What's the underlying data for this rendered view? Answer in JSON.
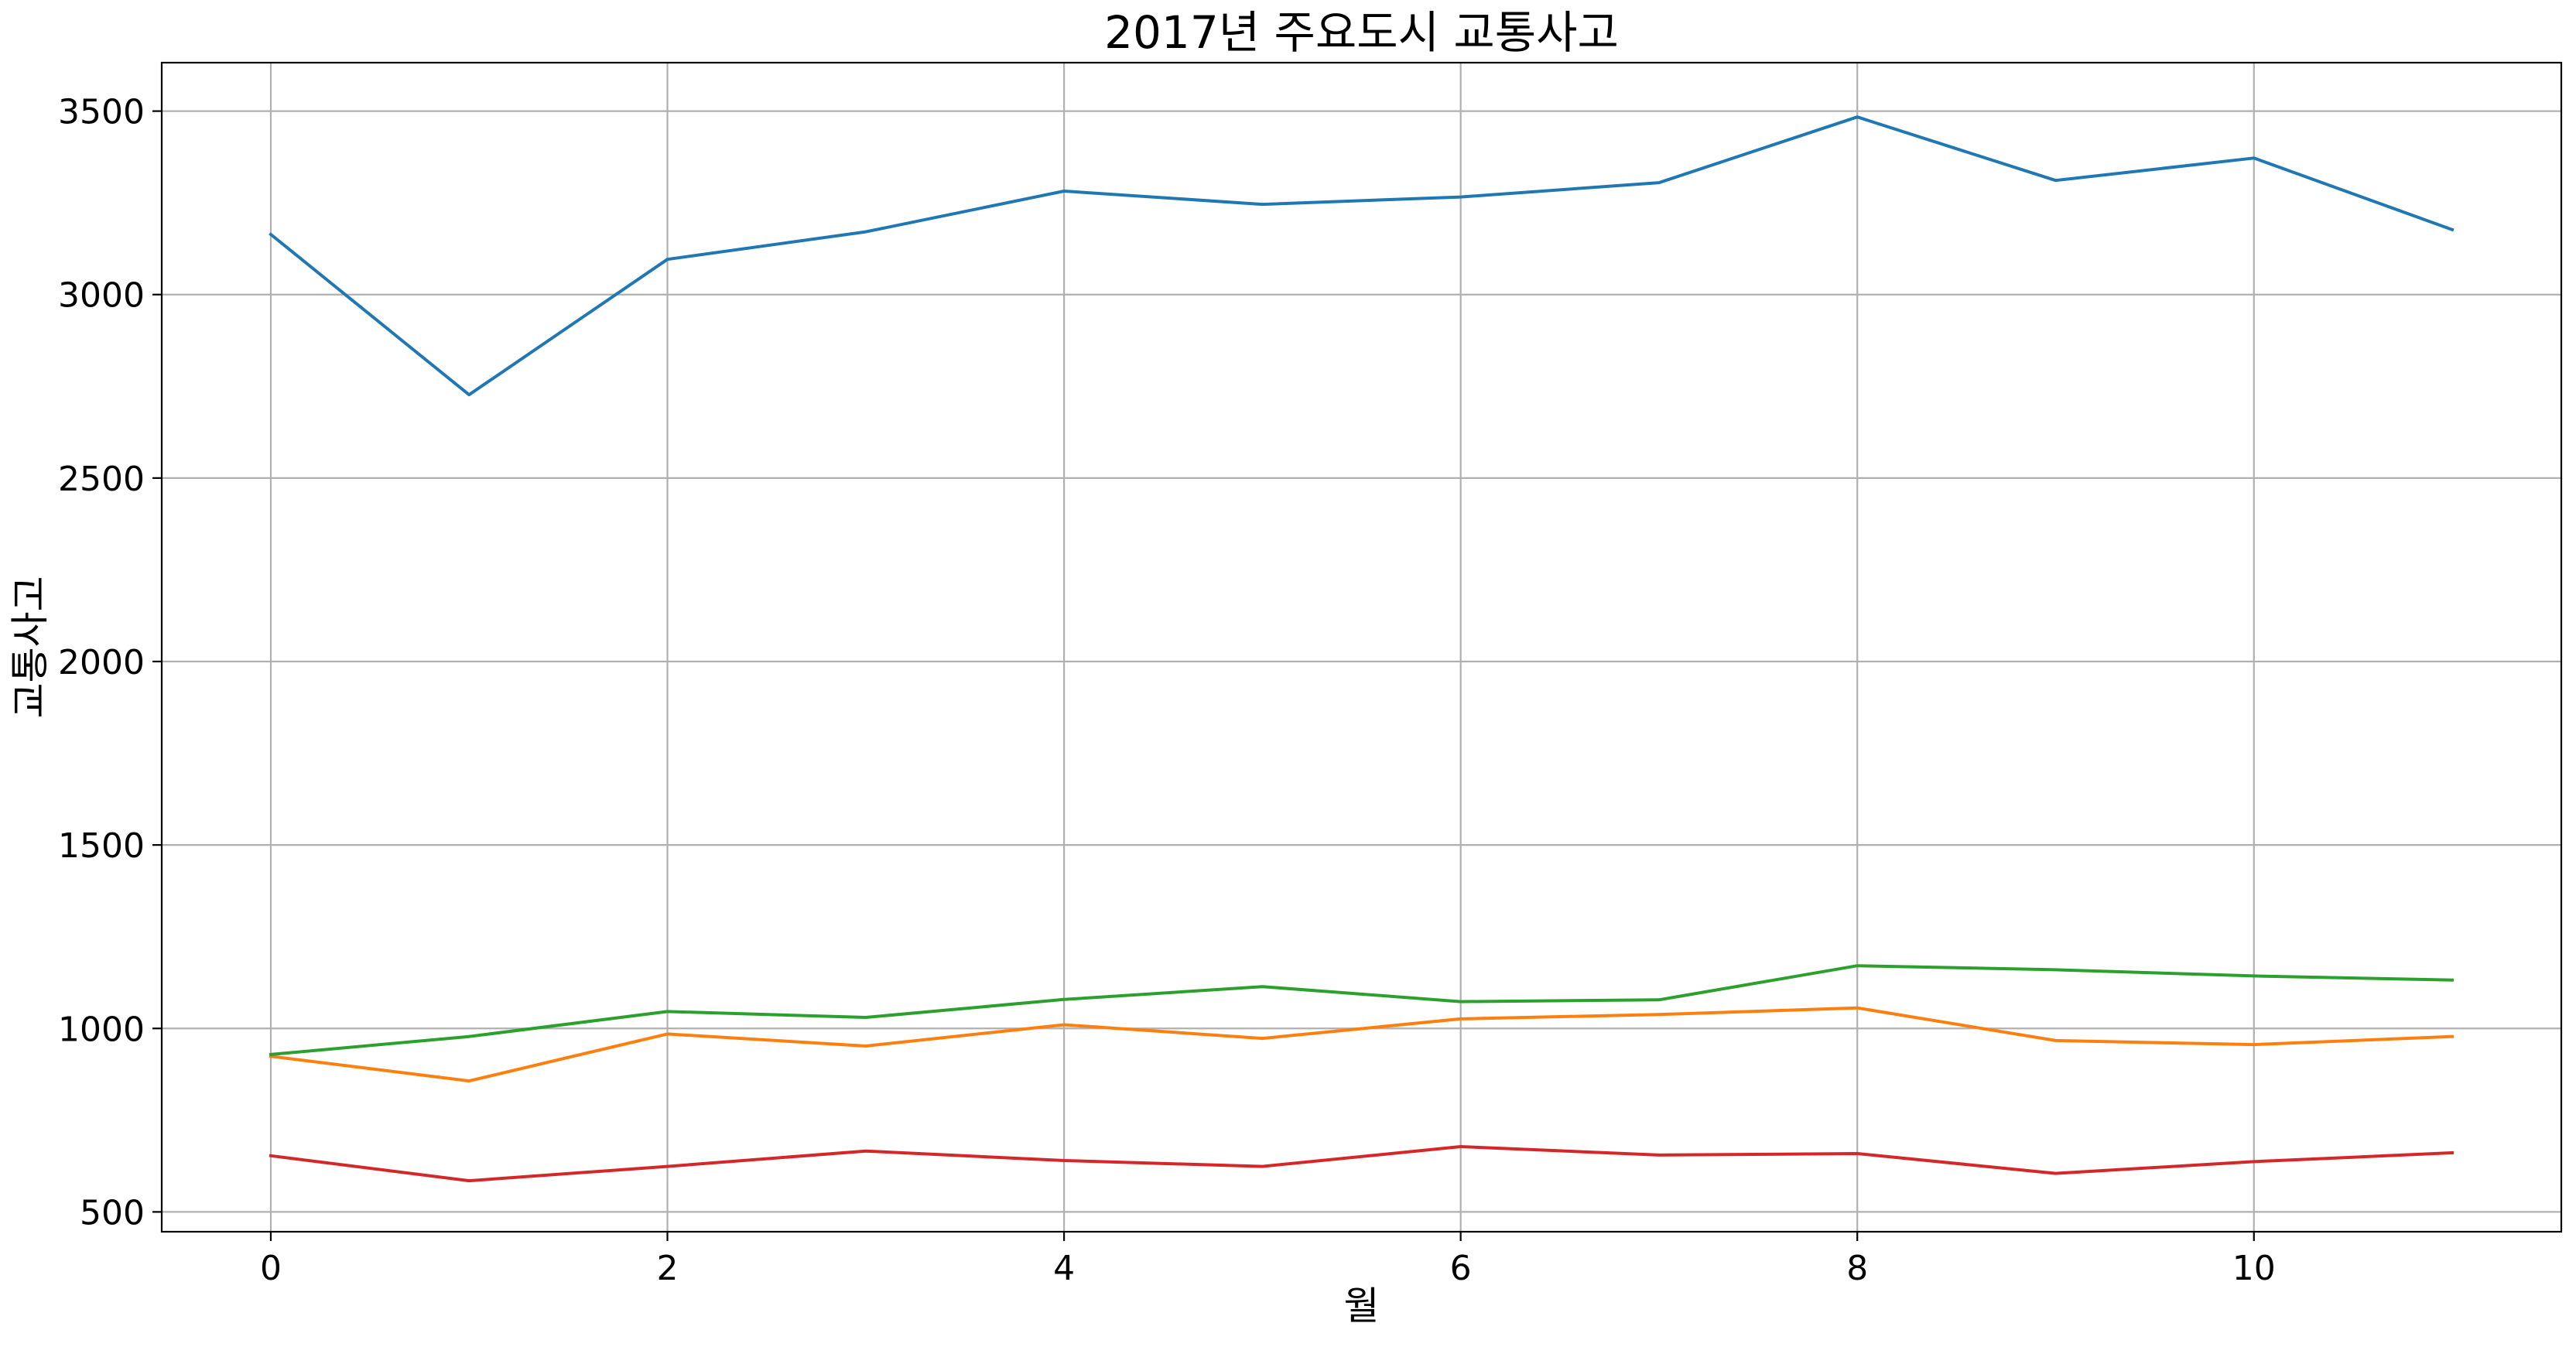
{
  "chart_data": {
    "type": "line",
    "title": "2017년 주요도시 교통사고",
    "xlabel": "월",
    "ylabel": "교통사고",
    "x": [
      0,
      1,
      2,
      3,
      4,
      5,
      6,
      7,
      8,
      9,
      10,
      11
    ],
    "xlim": [
      -0.55,
      11.55
    ],
    "ylim": [
      446,
      3632
    ],
    "xticks": [
      0,
      2,
      4,
      6,
      8,
      10
    ],
    "yticks": [
      500,
      1000,
      1500,
      2000,
      2500,
      3000,
      3500
    ],
    "grid": true,
    "legend": "none",
    "series": [
      {
        "color": "#1f77b4",
        "values": [
          3164,
          2727,
          3096,
          3171,
          3282,
          3246,
          3266,
          3305,
          3484,
          3311,
          3372,
          3177
        ]
      },
      {
        "color": "#ff7f0e",
        "values": [
          924,
          857,
          985,
          952,
          1010,
          973,
          1026,
          1038,
          1056,
          967,
          956,
          978
        ]
      },
      {
        "color": "#2ca02c",
        "values": [
          929,
          978,
          1046,
          1030,
          1079,
          1114,
          1073,
          1078,
          1171,
          1160,
          1143,
          1132
        ]
      },
      {
        "color": "#d62728",
        "values": [
          653,
          585,
          624,
          666,
          640,
          624,
          678,
          655,
          659,
          605,
          637,
          661
        ]
      }
    ]
  }
}
